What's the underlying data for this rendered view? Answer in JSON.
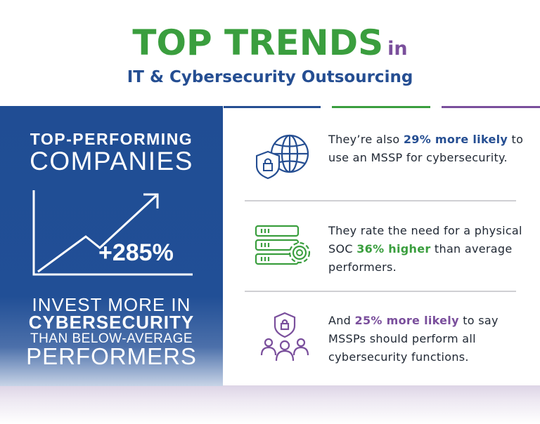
{
  "header": {
    "title_big": "TOP TRENDS",
    "title_small": "in",
    "subtitle": "IT & Cybersecurity Outsourcing"
  },
  "colors": {
    "blue": "#254e92",
    "green": "#3a9e3e",
    "purple": "#7a4f9c"
  },
  "left_panel": {
    "heading_line1": "TOP-PERFORMING",
    "heading_line2": "COMPANIES",
    "stat": "+285%",
    "chart_icon": "trend-up-arrow-icon",
    "line1": "INVEST MORE IN",
    "line2": "CYBERSECURITY",
    "line3": "THAN BELOW-AVERAGE",
    "line4": "PERFORMERS"
  },
  "stats": [
    {
      "icon": "shield-lock-globe-icon",
      "before": "They’re also ",
      "highlight": "29% more likely",
      "after": " to use an MSSP for cybersecurity."
    },
    {
      "icon": "server-gear-icon",
      "before": "They rate the need for a physical SOC ",
      "highlight": "36% higher",
      "after": " than average performers."
    },
    {
      "icon": "shield-lock-people-icon",
      "before": "And ",
      "highlight": "25% more likely",
      "after": " to say MSSPs should perform all cybersecurity functions."
    }
  ]
}
